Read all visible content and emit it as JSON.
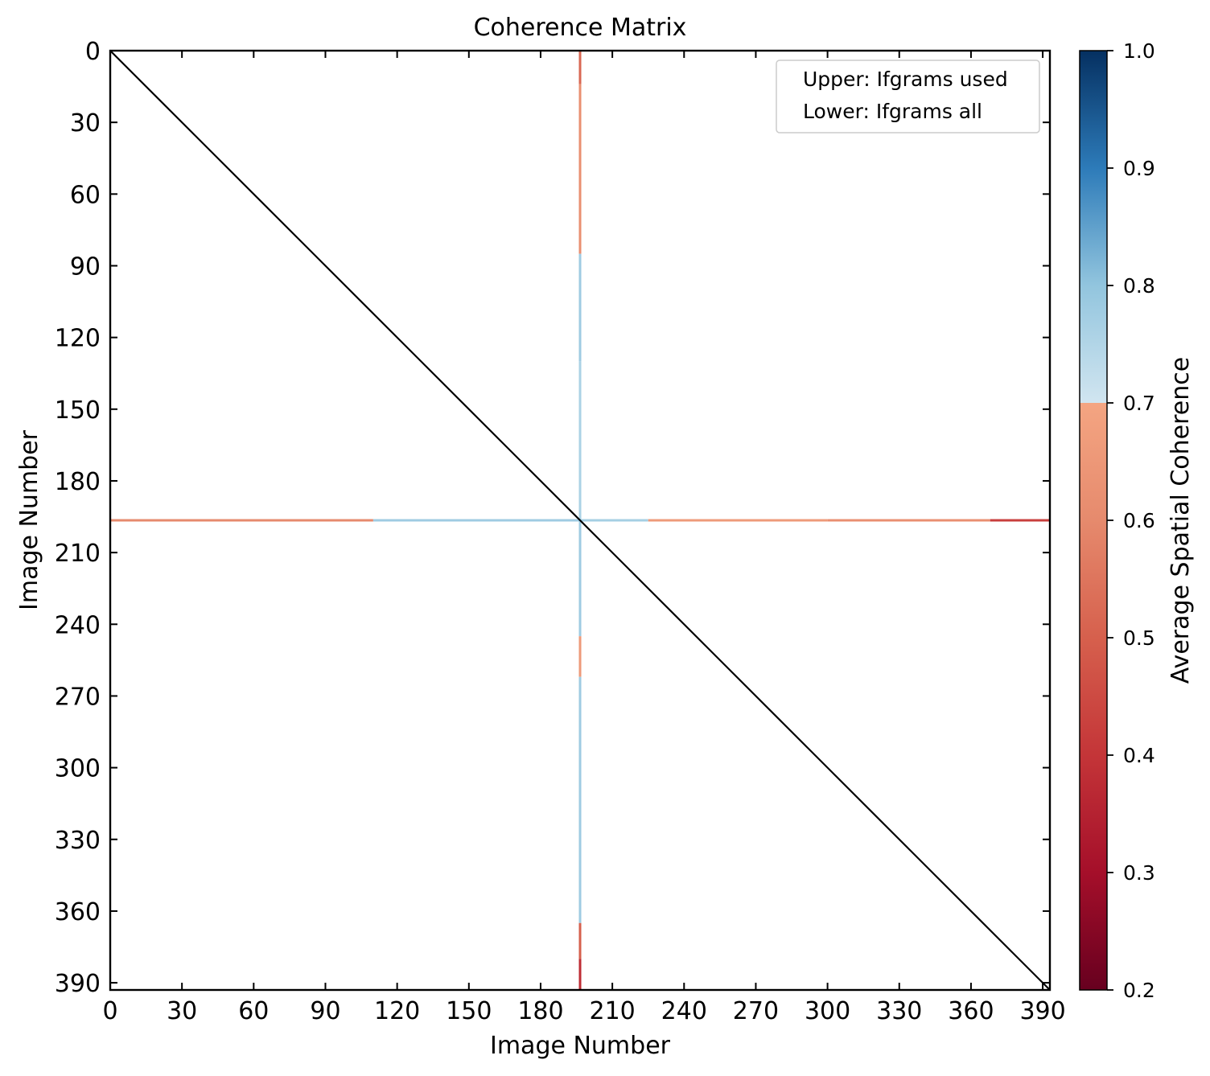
{
  "chart_data": {
    "type": "heatmap",
    "title": "Coherence Matrix",
    "xlabel": "Image Number",
    "ylabel": "Image Number",
    "xlim": [
      0,
      393
    ],
    "ylim": [
      0,
      393
    ],
    "y_inverted": true,
    "x_ticks": [
      0,
      30,
      60,
      90,
      120,
      150,
      180,
      210,
      240,
      270,
      300,
      330,
      360,
      390
    ],
    "y_ticks": [
      0,
      30,
      60,
      90,
      120,
      150,
      180,
      210,
      240,
      270,
      300,
      330,
      360,
      390
    ],
    "legend": {
      "entries": [
        "Upper: Ifgrams used",
        "Lower: Ifgrams all"
      ],
      "placement": "upper right"
    },
    "colorbar": {
      "label": "Average Spatial Coherence",
      "range": [
        0.2,
        1.0
      ],
      "ticks": [
        0.2,
        0.3,
        0.4,
        0.5,
        0.6,
        0.7,
        0.8,
        0.9,
        1.0
      ],
      "colormap": "RdBu (discontinuous at 0.7)"
    },
    "diagonal": {
      "from": 0,
      "to": 393,
      "color": "#000000"
    },
    "highlight_index": 196,
    "row_segments": [
      {
        "from": 0,
        "to": 110,
        "value": 0.6
      },
      {
        "from": 110,
        "to": 196,
        "value": 0.78
      },
      {
        "from": 196,
        "to": 225,
        "value": 0.77
      },
      {
        "from": 225,
        "to": 300,
        "value": 0.66
      },
      {
        "from": 300,
        "to": 368,
        "value": 0.62
      },
      {
        "from": 368,
        "to": 393,
        "value": 0.42
      }
    ],
    "col_segments": [
      {
        "from": 0,
        "to": 14,
        "value": 0.52
      },
      {
        "from": 14,
        "to": 85,
        "value": 0.62
      },
      {
        "from": 85,
        "to": 130,
        "value": 0.78
      },
      {
        "from": 130,
        "to": 196,
        "value": 0.76
      },
      {
        "from": 196,
        "to": 245,
        "value": 0.78
      },
      {
        "from": 245,
        "to": 262,
        "value": 0.66
      },
      {
        "from": 262,
        "to": 365,
        "value": 0.78
      },
      {
        "from": 365,
        "to": 380,
        "value": 0.5
      },
      {
        "from": 380,
        "to": 393,
        "value": 0.38
      }
    ]
  }
}
